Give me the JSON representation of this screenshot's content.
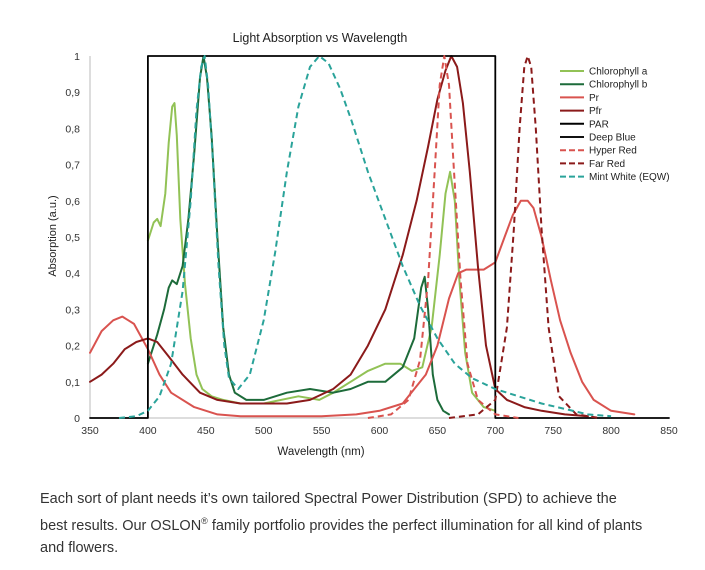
{
  "chart_data": {
    "type": "line",
    "title": "Light Absorption vs Wavelength",
    "xlabel": "Wavelength (nm)",
    "ylabel": "Absorption (a.u.)",
    "xlim": [
      350,
      850
    ],
    "ylim": [
      0,
      1
    ],
    "xticks": [
      350,
      400,
      450,
      500,
      550,
      600,
      650,
      700,
      750,
      800,
      850
    ],
    "yticks": [
      {
        "v": 0,
        "label": "0"
      },
      {
        "v": 0.1,
        "label": "0,1"
      },
      {
        "v": 0.2,
        "label": "0,2"
      },
      {
        "v": 0.3,
        "label": "0,3"
      },
      {
        "v": 0.4,
        "label": "0,4"
      },
      {
        "v": 0.5,
        "label": "0,5"
      },
      {
        "v": 0.6,
        "label": "0,6"
      },
      {
        "v": 0.7,
        "label": "0,7"
      },
      {
        "v": 0.8,
        "label": "0,8"
      },
      {
        "v": 0.9,
        "label": "0,9"
      },
      {
        "v": 1,
        "label": "1"
      }
    ],
    "grid": false,
    "legend_position": "top-right",
    "series": [
      {
        "name": "Chlorophyll a",
        "color": "#92c256",
        "dash": false,
        "points": [
          [
            400,
            0.49
          ],
          [
            405,
            0.54
          ],
          [
            408,
            0.55
          ],
          [
            411,
            0.53
          ],
          [
            415,
            0.62
          ],
          [
            418,
            0.76
          ],
          [
            421,
            0.86
          ],
          [
            423,
            0.87
          ],
          [
            425,
            0.78
          ],
          [
            428,
            0.55
          ],
          [
            432,
            0.37
          ],
          [
            437,
            0.22
          ],
          [
            442,
            0.12
          ],
          [
            447,
            0.08
          ],
          [
            455,
            0.06
          ],
          [
            465,
            0.05
          ],
          [
            480,
            0.04
          ],
          [
            500,
            0.04
          ],
          [
            530,
            0.06
          ],
          [
            548,
            0.05
          ],
          [
            560,
            0.07
          ],
          [
            575,
            0.1
          ],
          [
            590,
            0.13
          ],
          [
            605,
            0.15
          ],
          [
            618,
            0.15
          ],
          [
            628,
            0.13
          ],
          [
            637,
            0.14
          ],
          [
            645,
            0.25
          ],
          [
            652,
            0.45
          ],
          [
            657,
            0.62
          ],
          [
            661,
            0.68
          ],
          [
            665,
            0.6
          ],
          [
            669,
            0.38
          ],
          [
            674,
            0.18
          ],
          [
            680,
            0.07
          ],
          [
            690,
            0.03
          ],
          [
            700,
            0.02
          ]
        ]
      },
      {
        "name": "Chlorophyll b",
        "color": "#1d6b3a",
        "dash": false,
        "points": [
          [
            400,
            0.15
          ],
          [
            408,
            0.23
          ],
          [
            414,
            0.3
          ],
          [
            418,
            0.36
          ],
          [
            421,
            0.38
          ],
          [
            425,
            0.37
          ],
          [
            430,
            0.42
          ],
          [
            435,
            0.55
          ],
          [
            440,
            0.73
          ],
          [
            445,
            0.94
          ],
          [
            448,
            1.0
          ],
          [
            451,
            0.94
          ],
          [
            455,
            0.78
          ],
          [
            460,
            0.5
          ],
          [
            465,
            0.25
          ],
          [
            470,
            0.12
          ],
          [
            475,
            0.07
          ],
          [
            485,
            0.05
          ],
          [
            500,
            0.05
          ],
          [
            520,
            0.07
          ],
          [
            540,
            0.08
          ],
          [
            560,
            0.07
          ],
          [
            575,
            0.08
          ],
          [
            590,
            0.1
          ],
          [
            605,
            0.1
          ],
          [
            620,
            0.14
          ],
          [
            630,
            0.22
          ],
          [
            636,
            0.36
          ],
          [
            639,
            0.39
          ],
          [
            642,
            0.3
          ],
          [
            646,
            0.12
          ],
          [
            650,
            0.05
          ],
          [
            655,
            0.02
          ],
          [
            660,
            0.01
          ]
        ]
      },
      {
        "name": "Pr",
        "color": "#d9534f",
        "dash": false,
        "points": [
          [
            350,
            0.18
          ],
          [
            360,
            0.24
          ],
          [
            370,
            0.27
          ],
          [
            378,
            0.28
          ],
          [
            388,
            0.26
          ],
          [
            400,
            0.19
          ],
          [
            410,
            0.12
          ],
          [
            420,
            0.07
          ],
          [
            440,
            0.03
          ],
          [
            460,
            0.01
          ],
          [
            480,
            0.005
          ],
          [
            500,
            0.005
          ],
          [
            550,
            0.005
          ],
          [
            580,
            0.01
          ],
          [
            600,
            0.02
          ],
          [
            620,
            0.04
          ],
          [
            640,
            0.12
          ],
          [
            650,
            0.2
          ],
          [
            660,
            0.33
          ],
          [
            668,
            0.4
          ],
          [
            675,
            0.41
          ],
          [
            690,
            0.41
          ],
          [
            700,
            0.43
          ],
          [
            708,
            0.5
          ],
          [
            715,
            0.56
          ],
          [
            722,
            0.6
          ],
          [
            728,
            0.6
          ],
          [
            733,
            0.58
          ],
          [
            740,
            0.5
          ],
          [
            748,
            0.38
          ],
          [
            756,
            0.27
          ],
          [
            765,
            0.18
          ],
          [
            775,
            0.1
          ],
          [
            785,
            0.05
          ],
          [
            800,
            0.02
          ],
          [
            820,
            0.01
          ]
        ]
      },
      {
        "name": "Pfr",
        "color": "#8b1a1a",
        "dash": false,
        "points": [
          [
            350,
            0.1
          ],
          [
            360,
            0.12
          ],
          [
            370,
            0.15
          ],
          [
            380,
            0.19
          ],
          [
            390,
            0.21
          ],
          [
            400,
            0.22
          ],
          [
            408,
            0.21
          ],
          [
            418,
            0.17
          ],
          [
            430,
            0.12
          ],
          [
            445,
            0.07
          ],
          [
            460,
            0.05
          ],
          [
            480,
            0.04
          ],
          [
            500,
            0.04
          ],
          [
            520,
            0.04
          ],
          [
            540,
            0.05
          ],
          [
            560,
            0.08
          ],
          [
            575,
            0.12
          ],
          [
            590,
            0.2
          ],
          [
            605,
            0.3
          ],
          [
            620,
            0.45
          ],
          [
            632,
            0.6
          ],
          [
            642,
            0.75
          ],
          [
            650,
            0.88
          ],
          [
            657,
            0.96
          ],
          [
            662,
            1.0
          ],
          [
            667,
            0.97
          ],
          [
            672,
            0.87
          ],
          [
            678,
            0.68
          ],
          [
            685,
            0.42
          ],
          [
            692,
            0.2
          ],
          [
            700,
            0.08
          ],
          [
            710,
            0.05
          ],
          [
            725,
            0.03
          ],
          [
            740,
            0.02
          ],
          [
            760,
            0.01
          ],
          [
            780,
            0.005
          ]
        ]
      },
      {
        "name": "PAR",
        "color": "#000000",
        "dash": false,
        "points": [
          [
            350,
            0
          ],
          [
            400,
            0
          ],
          [
            400,
            1.0
          ],
          [
            700,
            1.0
          ],
          [
            700,
            0
          ],
          [
            850,
            0
          ]
        ]
      },
      {
        "name": "Deep Blue",
        "color": "#111111",
        "dash": false,
        "points": []
      },
      {
        "name": "Hyper Red",
        "color": "#d9534f",
        "dash": true,
        "points": [
          [
            590,
            0
          ],
          [
            610,
            0.01
          ],
          [
            625,
            0.05
          ],
          [
            635,
            0.16
          ],
          [
            642,
            0.38
          ],
          [
            648,
            0.7
          ],
          [
            652,
            0.92
          ],
          [
            656,
            1.0
          ],
          [
            660,
            0.92
          ],
          [
            664,
            0.7
          ],
          [
            670,
            0.38
          ],
          [
            676,
            0.15
          ],
          [
            685,
            0.05
          ],
          [
            700,
            0.01
          ],
          [
            720,
            0
          ]
        ]
      },
      {
        "name": "Far Red",
        "color": "#8b1a1a",
        "dash": true,
        "points": [
          [
            660,
            0
          ],
          [
            685,
            0.01
          ],
          [
            700,
            0.05
          ],
          [
            710,
            0.25
          ],
          [
            716,
            0.52
          ],
          [
            721,
            0.8
          ],
          [
            725,
            0.97
          ],
          [
            728,
            1.0
          ],
          [
            731,
            0.97
          ],
          [
            735,
            0.8
          ],
          [
            740,
            0.52
          ],
          [
            746,
            0.25
          ],
          [
            755,
            0.06
          ],
          [
            770,
            0.01
          ],
          [
            790,
            0
          ]
        ]
      },
      {
        "name": "Mint White (EQW)",
        "color": "#2aa39a",
        "dash": true,
        "points": [
          [
            375,
            0
          ],
          [
            390,
            0.005
          ],
          [
            400,
            0.02
          ],
          [
            410,
            0.06
          ],
          [
            420,
            0.15
          ],
          [
            430,
            0.35
          ],
          [
            437,
            0.6
          ],
          [
            442,
            0.85
          ],
          [
            446,
            0.97
          ],
          [
            449,
            1.0
          ],
          [
            452,
            0.92
          ],
          [
            456,
            0.72
          ],
          [
            461,
            0.42
          ],
          [
            466,
            0.2
          ],
          [
            470,
            0.11
          ],
          [
            478,
            0.08
          ],
          [
            488,
            0.12
          ],
          [
            500,
            0.27
          ],
          [
            510,
            0.46
          ],
          [
            520,
            0.68
          ],
          [
            530,
            0.86
          ],
          [
            540,
            0.97
          ],
          [
            548,
            1.0
          ],
          [
            556,
            0.98
          ],
          [
            566,
            0.91
          ],
          [
            576,
            0.82
          ],
          [
            590,
            0.68
          ],
          [
            605,
            0.55
          ],
          [
            620,
            0.42
          ],
          [
            635,
            0.31
          ],
          [
            650,
            0.22
          ],
          [
            665,
            0.15
          ],
          [
            680,
            0.11
          ],
          [
            700,
            0.08
          ],
          [
            720,
            0.06
          ],
          [
            740,
            0.04
          ],
          [
            760,
            0.025
          ],
          [
            780,
            0.01
          ],
          [
            800,
            0.005
          ]
        ]
      }
    ]
  },
  "caption": {
    "line1": "Each sort of plant needs it’s own tailored Spectral Power Distribution (SPD) to achieve the",
    "line2_a": "best results. Our OSLON",
    "line2_sup": "®",
    "line2_b": " family portfolio provides the perfect illumination for all kind of plants",
    "line3": "and flowers."
  }
}
